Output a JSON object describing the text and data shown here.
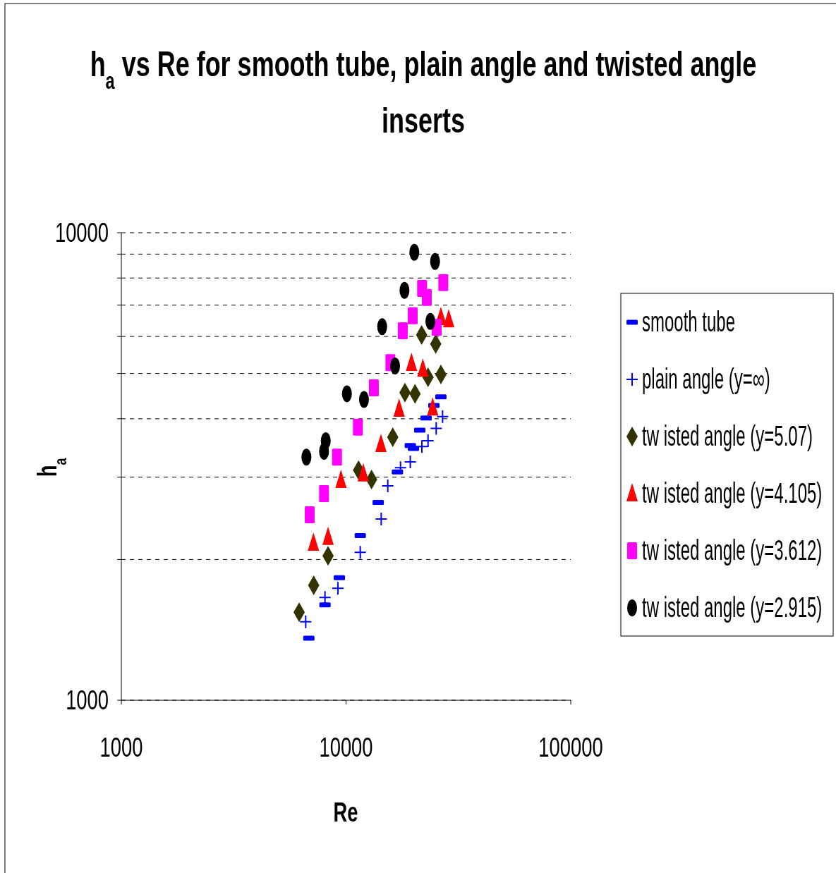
{
  "chart_data": {
    "type": "scatter",
    "title": "h$_{a}$ vs Re for smooth tube, plain angle and twisted angle inserts",
    "xlabel": "Re",
    "ylabel": "h$_{a}$",
    "log": "xy",
    "xlim": [
      1000,
      100000
    ],
    "xticks": [
      1000,
      10000,
      100000
    ],
    "ylim": [
      1000,
      10000
    ],
    "yticks": [
      1000,
      {
        "value": 2000,
        "label": null
      },
      {
        "value": 3000,
        "label": null
      },
      {
        "value": 4000,
        "label": null
      },
      {
        "value": 5000,
        "label": null
      },
      {
        "value": 6000,
        "label": null
      },
      {
        "value": 7000,
        "label": null
      },
      {
        "value": 8000,
        "label": null
      },
      {
        "value": 9000,
        "label": null
      },
      10000
    ],
    "grid": "y",
    "legend": "right",
    "series": [
      {
        "name": "smooth tube",
        "color": "#0000ff",
        "x": [
          6830,
          8060,
          9340,
          11570,
          13900,
          16930,
          19320,
          19950,
          21280,
          22710,
          24600,
          26430
        ],
        "values": [
          1358,
          1600,
          1828,
          2251,
          2648,
          3077,
          3507,
          3455,
          3783,
          4015,
          4271,
          4457
        ]
      },
      {
        "name": "plain angle (y=∞)",
        "color": "#0000ff",
        "marker": "cross",
        "x": [
          6614,
          8060,
          9200,
          11570,
          14340,
          15340,
          17480,
          19320,
          21750,
          23170,
          25190,
          26890
        ],
        "values": [
          1472,
          1659,
          1735,
          2072,
          2441,
          2874,
          3144,
          3235,
          3487,
          3590,
          3813,
          4043
        ]
      },
      {
        "name": "tw isted angle (y=5.07)",
        "color": "#333300",
        "marker": "diamond",
        "x": [
          6185,
          7180,
          8318,
          11370,
          12990,
          16140,
          18290,
          20280,
          23170,
          26430,
          21700,
          25070
        ],
        "values": [
          1542,
          1762,
          2036,
          3106,
          2965,
          3653,
          4550,
          4524,
          4908,
          4977,
          6043,
          5782
        ]
      },
      {
        "name": "tw isted angle (y=4.105)",
        "color": "#ff0000",
        "marker": "triangle",
        "x": [
          7160,
          8318,
          9493,
          11940,
          14300,
          17220,
          19560,
          21970,
          24300,
          26430,
          28640
        ],
        "values": [
          2169,
          2233,
          2955,
          3052,
          3528,
          4197,
          5260,
          5109,
          4222,
          6592,
          6515
        ]
      },
      {
        "name": "tw isted angle (y=3.612)",
        "color": "#ff00ff",
        "marker": "square",
        "x": [
          6890,
          7980,
          9117,
          11290,
          13300,
          15750,
          17890,
          19800,
          21800,
          22880,
          27090,
          25320
        ],
        "values": [
          2493,
          2767,
          3311,
          3839,
          4658,
          5272,
          6172,
          6645,
          7602,
          7274,
          7823,
          6274
        ]
      },
      {
        "name": "tw isted angle (y=2.915)",
        "color": "#000000",
        "marker": "circle",
        "x": [
          6662,
          7980,
          8123,
          10090,
          12020,
          14480,
          16530,
          18200,
          20130,
          24900,
          23730
        ],
        "values": [
          3311,
          3408,
          3590,
          4524,
          4397,
          6294,
          5188,
          7529,
          9084,
          8682,
          6463
        ]
      }
    ]
  }
}
